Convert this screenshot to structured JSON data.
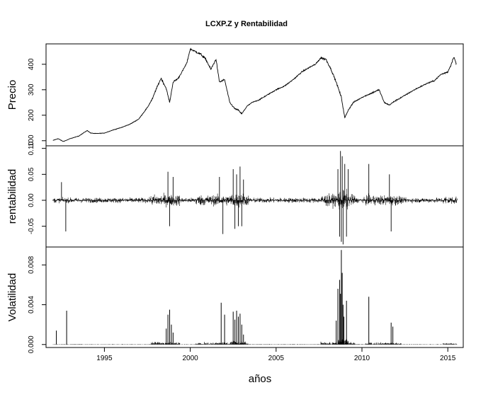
{
  "chart_data": {
    "type": "line",
    "title": "LCXP.Z  y  Rentabilidad",
    "xlabel": "años",
    "xlim": [
      1991.6,
      2015.9
    ],
    "x_ticks": [
      1995,
      2000,
      2005,
      2010,
      2015
    ],
    "panels": [
      {
        "name": "price",
        "ylabel": "Precio",
        "ylim": [
          80,
          480
        ],
        "y_ticks": [
          100,
          200,
          300,
          400
        ],
        "y_tick_labels": [
          "100",
          "200",
          "300",
          "400"
        ],
        "series": {
          "x": [
            1992.0,
            1992.3,
            1992.6,
            1992.8,
            1993.0,
            1993.5,
            1994.0,
            1994.2,
            1994.5,
            1995.0,
            1995.5,
            1996.0,
            1996.5,
            1997.0,
            1997.5,
            1997.8,
            1998.0,
            1998.3,
            1998.6,
            1998.8,
            1999.0,
            1999.3,
            1999.6,
            1999.8,
            2000.0,
            2000.3,
            2000.6,
            2000.9,
            2001.2,
            2001.5,
            2001.7,
            2002.0,
            2002.3,
            2002.6,
            2002.8,
            2003.0,
            2003.3,
            2003.6,
            2004.0,
            2004.5,
            2005.0,
            2005.5,
            2006.0,
            2006.5,
            2007.0,
            2007.3,
            2007.6,
            2007.9,
            2008.2,
            2008.5,
            2008.8,
            2009.0,
            2009.2,
            2009.5,
            2010.0,
            2010.5,
            2011.0,
            2011.3,
            2011.6,
            2011.9,
            2012.3,
            2012.8,
            2013.2,
            2013.8,
            2014.2,
            2014.6,
            2015.0,
            2015.2,
            2015.35,
            2015.5
          ],
          "y": [
            101,
            108,
            97,
            102,
            108,
            118,
            140,
            130,
            128,
            130,
            142,
            152,
            165,
            185,
            230,
            265,
            300,
            345,
            305,
            250,
            330,
            345,
            380,
            405,
            460,
            450,
            440,
            420,
            380,
            420,
            330,
            340,
            250,
            225,
            220,
            205,
            235,
            250,
            260,
            280,
            300,
            315,
            340,
            370,
            390,
            400,
            425,
            420,
            380,
            330,
            270,
            190,
            220,
            250,
            270,
            285,
            300,
            250,
            240,
            255,
            270,
            290,
            305,
            325,
            335,
            360,
            370,
            400,
            430,
            400
          ]
        }
      },
      {
        "name": "returns",
        "ylabel": "rentabilidad",
        "ylim": [
          -0.09,
          0.105
        ],
        "y_ticks": [
          -0.05,
          0.0,
          0.05,
          0.1
        ],
        "y_tick_labels": [
          "-0.05",
          "0.00",
          "0.05",
          "0.10"
        ],
        "spikes": {
          "x": [
            1992.5,
            1992.75,
            1998.7,
            1998.8,
            1999.0,
            2001.7,
            2001.9,
            2002.5,
            2002.6,
            2002.7,
            2002.8,
            2002.9,
            2003.0,
            2003.1,
            2008.6,
            2008.7,
            2008.75,
            2008.8,
            2008.85,
            2008.9,
            2009.0,
            2009.1,
            2009.2,
            2010.4,
            2011.6,
            2011.7
          ],
          "y": [
            0.035,
            -0.06,
            0.055,
            -0.05,
            0.045,
            0.045,
            -0.065,
            0.06,
            -0.055,
            0.05,
            -0.05,
            0.065,
            -0.05,
            0.04,
            0.06,
            -0.07,
            0.095,
            -0.08,
            0.085,
            -0.085,
            0.07,
            -0.07,
            0.06,
            0.07,
            0.05,
            -0.06
          ]
        }
      },
      {
        "name": "volatility",
        "ylabel": "Volatilidad",
        "ylim": [
          -0.0003,
          0.0098
        ],
        "y_ticks": [
          0.0,
          0.004,
          0.008
        ],
        "y_tick_labels": [
          "0.000",
          "0.004",
          "0.008"
        ],
        "spikes": {
          "x": [
            1992.2,
            1992.8,
            1998.6,
            1998.7,
            1998.8,
            1998.9,
            1999.0,
            2001.8,
            2002.0,
            2002.5,
            2002.6,
            2002.7,
            2002.8,
            2002.9,
            2003.0,
            2003.1,
            2008.5,
            2008.6,
            2008.7,
            2008.75,
            2008.8,
            2008.85,
            2008.9,
            2008.95,
            2009.1,
            2010.4,
            2011.7,
            2011.8
          ],
          "y": [
            0.0014,
            0.0034,
            0.0016,
            0.003,
            0.0035,
            0.002,
            0.0012,
            0.0042,
            0.003,
            0.0033,
            0.0025,
            0.0034,
            0.0028,
            0.0031,
            0.002,
            0.001,
            0.0024,
            0.0056,
            0.0065,
            0.0051,
            0.0095,
            0.0072,
            0.004,
            0.0028,
            0.0044,
            0.0048,
            0.0022,
            0.0018
          ]
        }
      }
    ]
  }
}
